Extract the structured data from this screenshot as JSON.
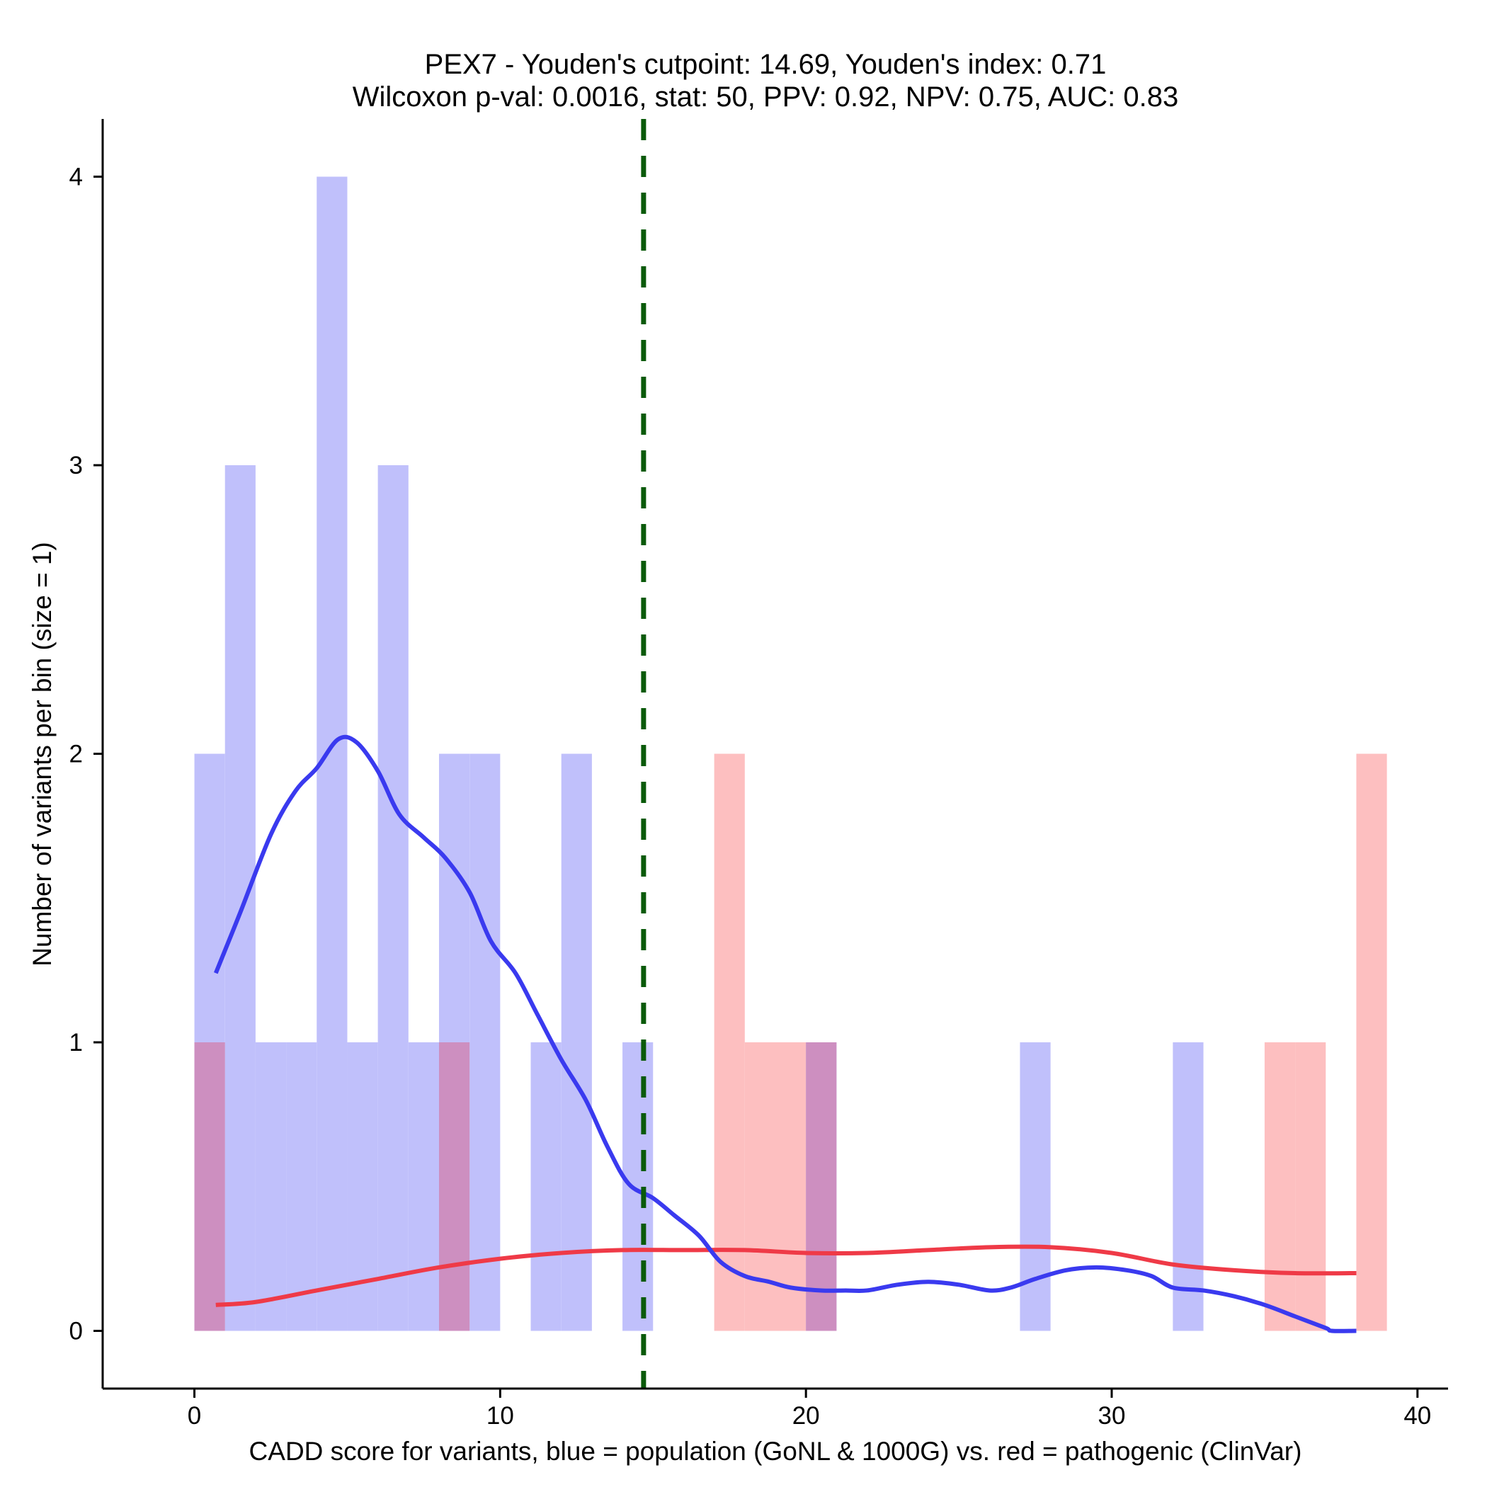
{
  "chart_data": {
    "type": "histogram",
    "title_line1": "PEX7 - Youden's cutpoint: 14.69, Youden's index: 0.71",
    "title_line2": "Wilcoxon p-val: 0.0016, stat: 50, PPV: 0.92, NPV: 0.75, AUC: 0.83",
    "xlabel": "CADD score for variants, blue = population (GoNL & 1000G) vs. red = pathogenic (ClinVar)",
    "ylabel": "Number of variants per bin (size = 1)",
    "xlim": [
      -3,
      41
    ],
    "ylim": [
      -0.2,
      4.2
    ],
    "x_ticks": [
      0,
      10,
      20,
      30,
      40
    ],
    "y_ticks": [
      0,
      1,
      2,
      3,
      4
    ],
    "bin_size": 1,
    "cutpoint": 14.69,
    "colors": {
      "population_bar": "#c0c0fb",
      "pathogenic_bar": "#fdbfc0",
      "overlap_bar": "#cd8fc0",
      "population_line": "#3a3aef",
      "pathogenic_line": "#ef3a47",
      "cutpoint_line": "#0a5a0a",
      "axis": "#000000"
    },
    "series": [
      {
        "name": "population (GoNL & 1000G)",
        "bins": [
          {
            "x": 0,
            "count": 2
          },
          {
            "x": 1,
            "count": 3
          },
          {
            "x": 2,
            "count": 1
          },
          {
            "x": 3,
            "count": 1
          },
          {
            "x": 4,
            "count": 4
          },
          {
            "x": 5,
            "count": 1
          },
          {
            "x": 6,
            "count": 3
          },
          {
            "x": 7,
            "count": 1
          },
          {
            "x": 8,
            "count": 2
          },
          {
            "x": 9,
            "count": 2
          },
          {
            "x": 11,
            "count": 1
          },
          {
            "x": 12,
            "count": 2
          },
          {
            "x": 14,
            "count": 1
          },
          {
            "x": 20,
            "count": 1
          },
          {
            "x": 27,
            "count": 1
          },
          {
            "x": 32,
            "count": 1
          }
        ],
        "density": [
          [
            0.7,
            1.24
          ],
          [
            1.5,
            1.45
          ],
          [
            2.5,
            1.72
          ],
          [
            3.3,
            1.87
          ],
          [
            4.0,
            1.95
          ],
          [
            4.7,
            2.05
          ],
          [
            5.3,
            2.04
          ],
          [
            6.0,
            1.94
          ],
          [
            6.7,
            1.79
          ],
          [
            7.5,
            1.71
          ],
          [
            8.2,
            1.64
          ],
          [
            9.0,
            1.52
          ],
          [
            9.7,
            1.35
          ],
          [
            10.5,
            1.24
          ],
          [
            11.2,
            1.1
          ],
          [
            12.0,
            0.94
          ],
          [
            12.8,
            0.8
          ],
          [
            13.5,
            0.64
          ],
          [
            14.2,
            0.51
          ],
          [
            15.0,
            0.46
          ],
          [
            15.7,
            0.4
          ],
          [
            16.5,
            0.33
          ],
          [
            17.2,
            0.24
          ],
          [
            18.0,
            0.19
          ],
          [
            18.8,
            0.17
          ],
          [
            19.5,
            0.15
          ],
          [
            20.5,
            0.14
          ],
          [
            21.3,
            0.14
          ],
          [
            22.0,
            0.14
          ],
          [
            23.0,
            0.16
          ],
          [
            24.0,
            0.17
          ],
          [
            25.0,
            0.16
          ],
          [
            26.0,
            0.14
          ],
          [
            26.7,
            0.15
          ],
          [
            27.5,
            0.18
          ],
          [
            28.5,
            0.21
          ],
          [
            29.5,
            0.22
          ],
          [
            30.5,
            0.21
          ],
          [
            31.3,
            0.19
          ],
          [
            32.0,
            0.15
          ],
          [
            33.0,
            0.14
          ],
          [
            34.0,
            0.12
          ],
          [
            35.0,
            0.09
          ],
          [
            36.0,
            0.05
          ],
          [
            37.0,
            0.01
          ],
          [
            37.2,
            0.0
          ],
          [
            38.0,
            0.0
          ]
        ]
      },
      {
        "name": "pathogenic (ClinVar)",
        "bins": [
          {
            "x": 0,
            "count": 1
          },
          {
            "x": 8,
            "count": 1
          },
          {
            "x": 17,
            "count": 2
          },
          {
            "x": 18,
            "count": 1
          },
          {
            "x": 19,
            "count": 1
          },
          {
            "x": 20,
            "count": 1
          },
          {
            "x": 35,
            "count": 1
          },
          {
            "x": 36,
            "count": 1
          },
          {
            "x": 38,
            "count": 2
          }
        ],
        "density": [
          [
            0.7,
            0.09
          ],
          [
            2.0,
            0.1
          ],
          [
            4.0,
            0.14
          ],
          [
            6.0,
            0.18
          ],
          [
            8.0,
            0.22
          ],
          [
            10.0,
            0.25
          ],
          [
            12.0,
            0.27
          ],
          [
            14.0,
            0.28
          ],
          [
            16.0,
            0.28
          ],
          [
            18.0,
            0.28
          ],
          [
            20.0,
            0.27
          ],
          [
            22.0,
            0.27
          ],
          [
            24.0,
            0.28
          ],
          [
            26.0,
            0.29
          ],
          [
            28.0,
            0.29
          ],
          [
            30.0,
            0.27
          ],
          [
            32.0,
            0.23
          ],
          [
            34.0,
            0.21
          ],
          [
            36.0,
            0.2
          ],
          [
            38.0,
            0.2
          ]
        ]
      }
    ]
  }
}
